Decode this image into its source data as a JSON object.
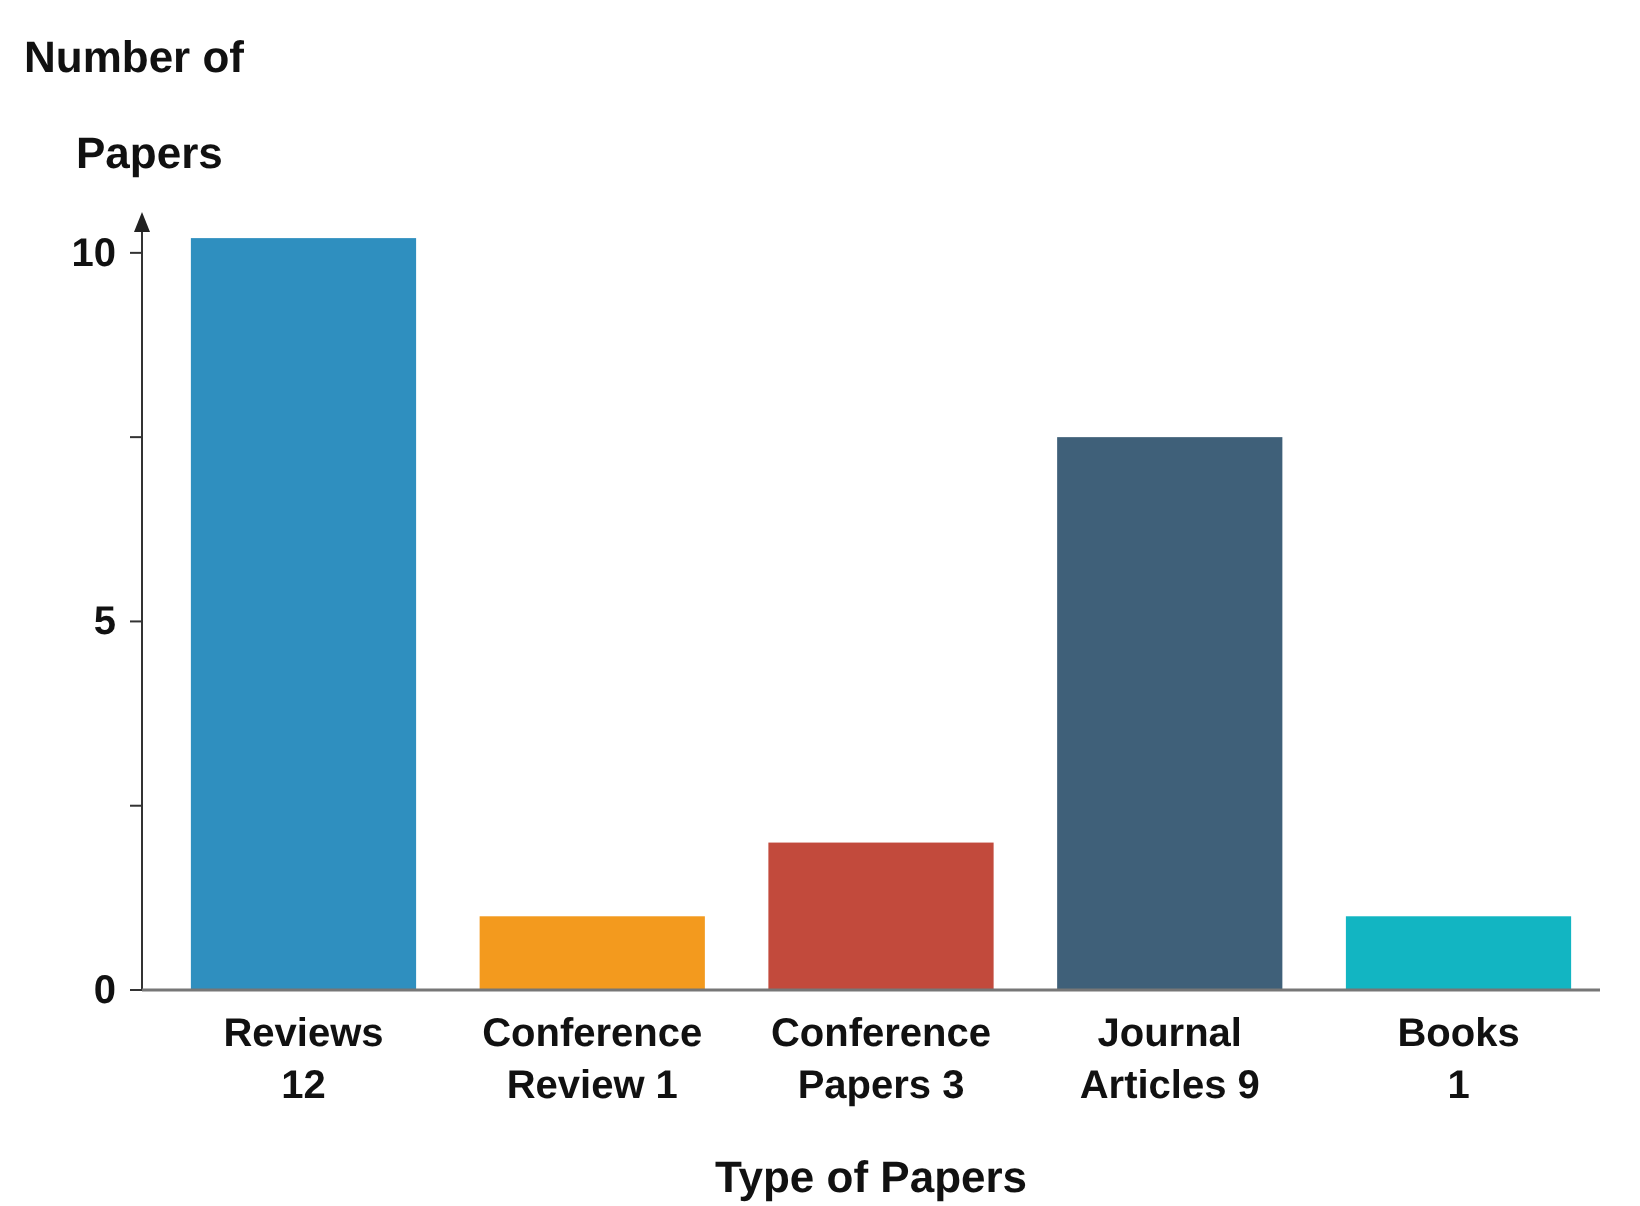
{
  "chart_data": {
    "type": "bar",
    "categories": [
      "Reviews 12",
      "Conference Review 1",
      "Conference Papers 3",
      "Journal Articles 9",
      "Books 1"
    ],
    "values": [
      10.2,
      1,
      2,
      7.5,
      1
    ],
    "colors": [
      "#2f8fbf",
      "#f39a1e",
      "#c24a3c",
      "#3f6079",
      "#12b5c2"
    ],
    "ylim": [
      0,
      10.5
    ],
    "yticks": [
      0,
      {
        "value": 2.5,
        "label": null
      },
      5,
      {
        "value": 7.5,
        "label": null
      },
      10
    ],
    "ylabel": "Number of Papers",
    "xlabel": "Type of Papers"
  }
}
